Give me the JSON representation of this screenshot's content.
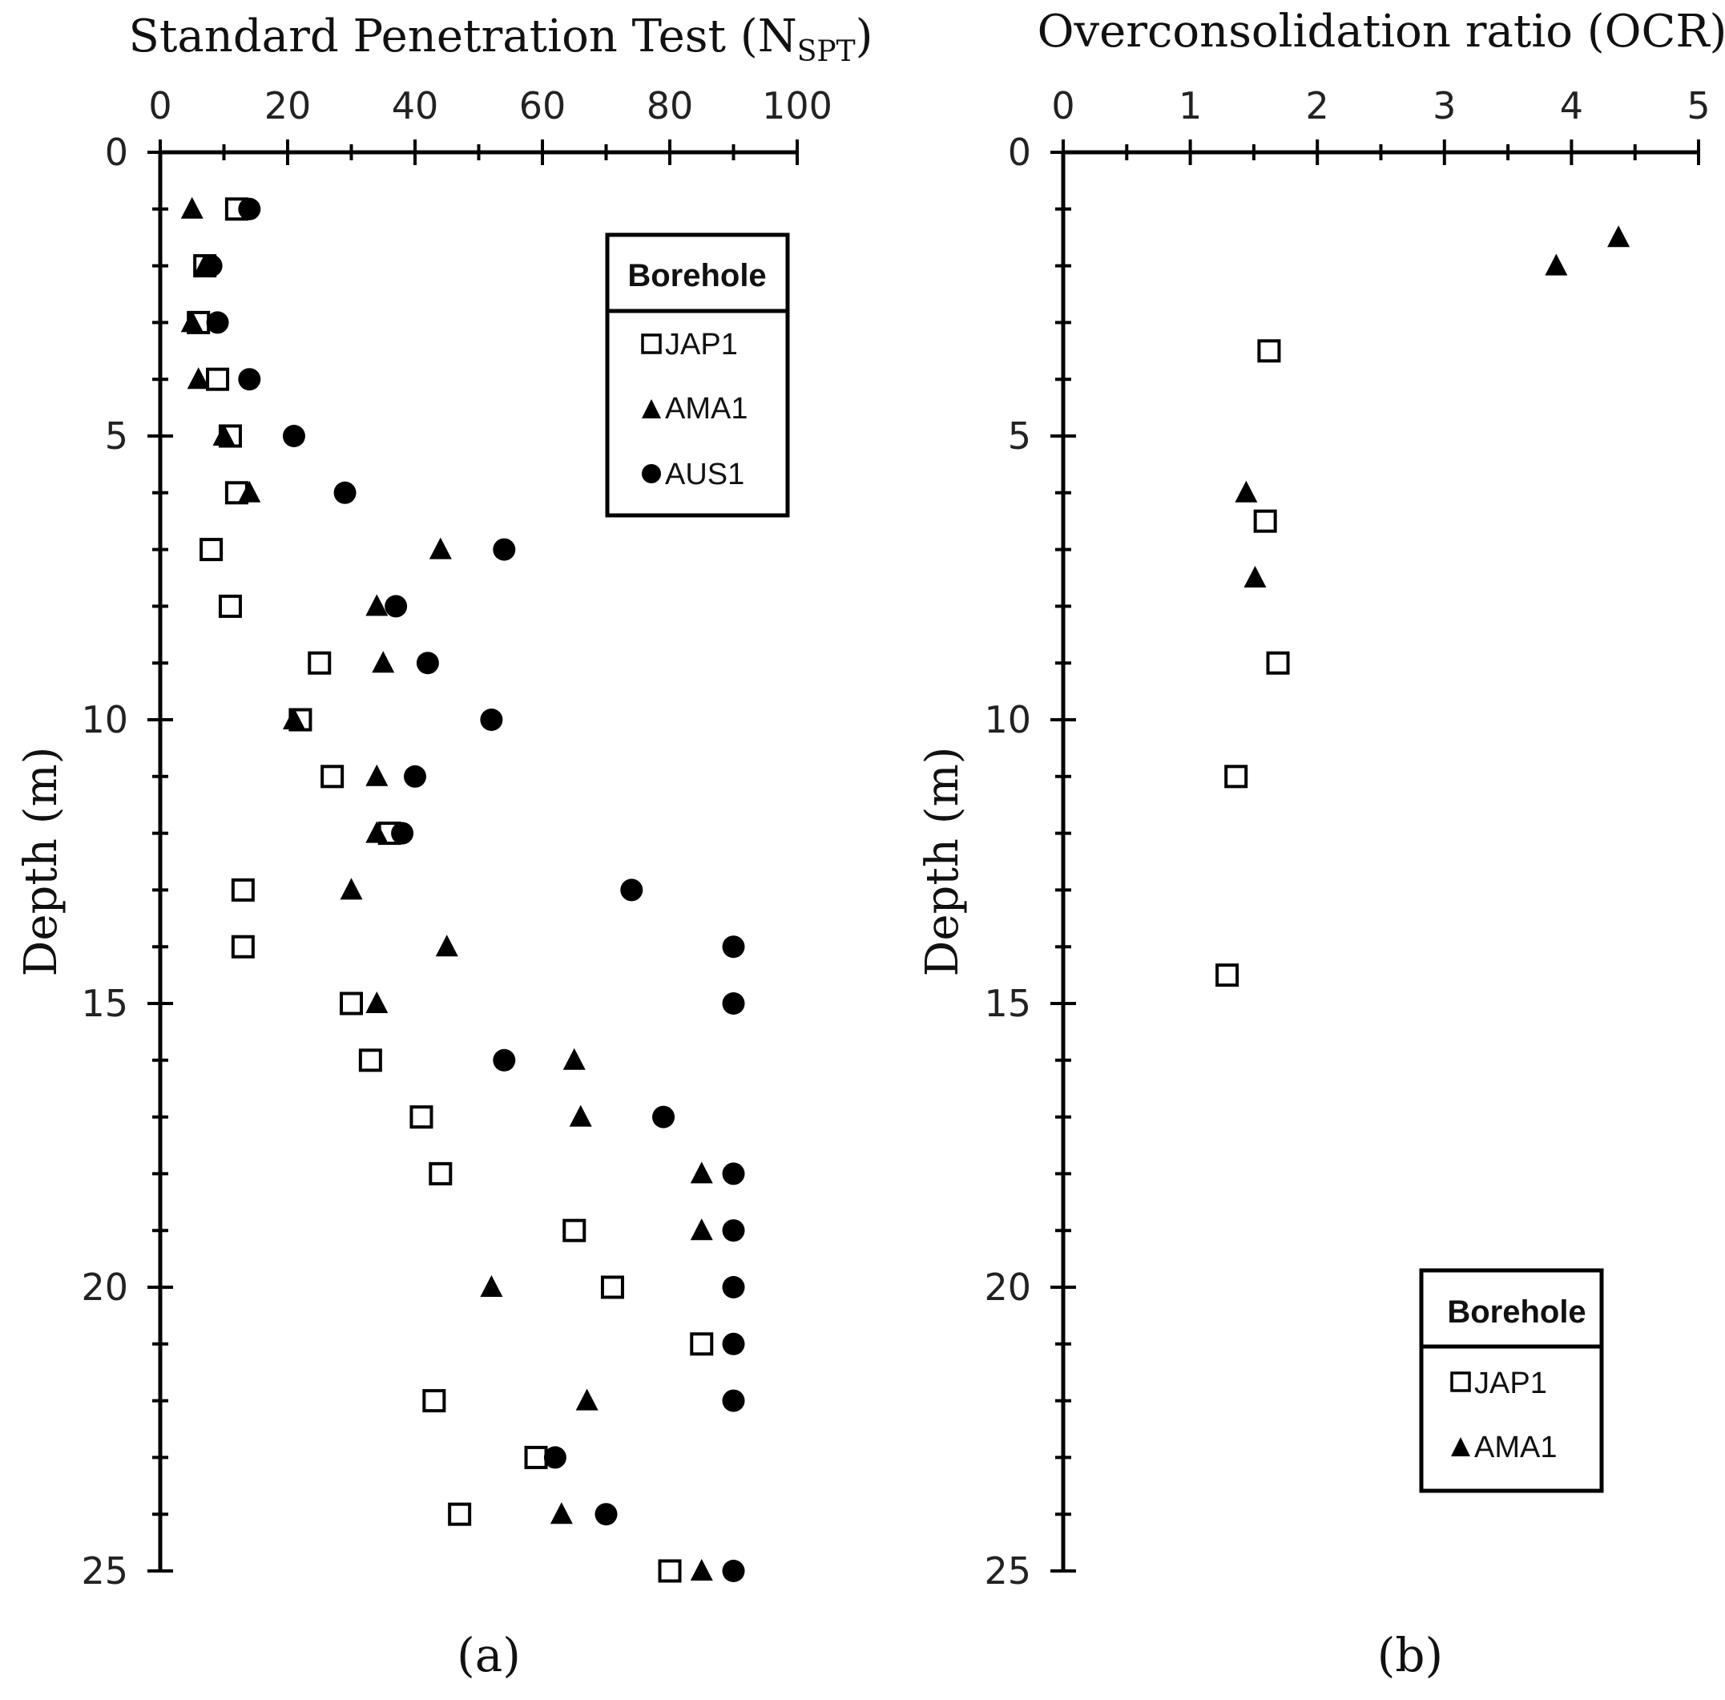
{
  "chart_data": [
    {
      "type": "scatter",
      "panel_label": "(a)",
      "title_main": "Standard Penetration Test (N",
      "title_sub": "SPT",
      "title_close": ")",
      "xlabel": "",
      "ylabel": "Depth  (m)",
      "xlim": [
        0,
        100
      ],
      "ylim": [
        0,
        25
      ],
      "y_inverted": true,
      "x_axis_position": "top",
      "x_ticks": [
        0,
        20,
        40,
        60,
        80,
        100
      ],
      "x_tick_labels": [
        "0",
        "20",
        "40",
        "60",
        "80",
        "100"
      ],
      "y_ticks": [
        0,
        5,
        10,
        15,
        20,
        25
      ],
      "y_tick_labels": [
        "0",
        "5",
        "10",
        "15",
        "20",
        "25"
      ],
      "legend": {
        "title": "Borehole",
        "placement": "top-right",
        "entries": [
          "JAP1",
          "AMA1",
          "AUS1"
        ]
      },
      "series": [
        {
          "name": "JAP1",
          "marker": "open-square",
          "points": [
            [
              12,
              1
            ],
            [
              7,
              2
            ],
            [
              6,
              3
            ],
            [
              9,
              4
            ],
            [
              11,
              5
            ],
            [
              12,
              6
            ],
            [
              8,
              7
            ],
            [
              11,
              8
            ],
            [
              25,
              9
            ],
            [
              22,
              10
            ],
            [
              27,
              11
            ],
            [
              36,
              12
            ],
            [
              13,
              13
            ],
            [
              13,
              14
            ],
            [
              30,
              15
            ],
            [
              33,
              16
            ],
            [
              41,
              17
            ],
            [
              44,
              18
            ],
            [
              65,
              19
            ],
            [
              71,
              20
            ],
            [
              85,
              21
            ],
            [
              43,
              22
            ],
            [
              59,
              23
            ],
            [
              47,
              24
            ],
            [
              80,
              25
            ]
          ]
        },
        {
          "name": "AMA1",
          "marker": "filled-triangle",
          "points": [
            [
              5,
              1
            ],
            [
              7,
              2
            ],
            [
              5,
              3
            ],
            [
              6,
              4
            ],
            [
              10,
              5
            ],
            [
              14,
              6
            ],
            [
              44,
              7
            ],
            [
              34,
              8
            ],
            [
              35,
              9
            ],
            [
              21,
              10
            ],
            [
              34,
              11
            ],
            [
              34,
              12
            ],
            [
              30,
              13
            ],
            [
              45,
              14
            ],
            [
              34,
              15
            ],
            [
              65,
              16
            ],
            [
              66,
              17
            ],
            [
              85,
              18
            ],
            [
              85,
              19
            ],
            [
              52,
              20
            ],
            [
              67,
              22
            ],
            [
              63,
              24
            ],
            [
              85,
              25
            ]
          ]
        },
        {
          "name": "AUS1",
          "marker": "filled-circle",
          "points": [
            [
              14,
              1
            ],
            [
              8,
              2
            ],
            [
              9,
              3
            ],
            [
              14,
              4
            ],
            [
              21,
              5
            ],
            [
              29,
              6
            ],
            [
              54,
              7
            ],
            [
              37,
              8
            ],
            [
              42,
              9
            ],
            [
              52,
              10
            ],
            [
              40,
              11
            ],
            [
              38,
              12
            ],
            [
              74,
              13
            ],
            [
              90,
              14
            ],
            [
              90,
              15
            ],
            [
              54,
              16
            ],
            [
              79,
              17
            ],
            [
              90,
              18
            ],
            [
              90,
              19
            ],
            [
              90,
              20
            ],
            [
              90,
              21
            ],
            [
              90,
              22
            ],
            [
              62,
              23
            ],
            [
              70,
              24
            ],
            [
              90,
              25
            ]
          ]
        }
      ]
    },
    {
      "type": "scatter",
      "panel_label": "(b)",
      "title": "Overconsolidation ratio (OCR)",
      "xlabel": "",
      "ylabel": "Depth  (m)",
      "xlim": [
        0,
        5
      ],
      "ylim": [
        0,
        25
      ],
      "y_inverted": true,
      "x_axis_position": "top",
      "x_ticks": [
        0,
        1,
        2,
        3,
        4,
        5
      ],
      "x_tick_labels": [
        "0",
        "1",
        "2",
        "3",
        "4",
        "5"
      ],
      "y_ticks": [
        0,
        5,
        10,
        15,
        20,
        25
      ],
      "y_tick_labels": [
        "0",
        "5",
        "10",
        "15",
        "20",
        "25"
      ],
      "legend": {
        "title": "Borehole",
        "placement": "bottom-right",
        "entries": [
          "JAP1",
          "AMA1"
        ]
      },
      "series": [
        {
          "name": "JAP1",
          "marker": "open-square",
          "points": [
            [
              1.62,
              3.5
            ],
            [
              1.59,
              6.5
            ],
            [
              1.69,
              9.0
            ],
            [
              1.36,
              11.0
            ],
            [
              1.29,
              14.5
            ]
          ]
        },
        {
          "name": "AMA1",
          "marker": "filled-triangle",
          "points": [
            [
              4.37,
              1.5
            ],
            [
              3.88,
              2.0
            ],
            [
              1.44,
              6.0
            ],
            [
              1.51,
              7.5
            ]
          ]
        }
      ]
    }
  ]
}
